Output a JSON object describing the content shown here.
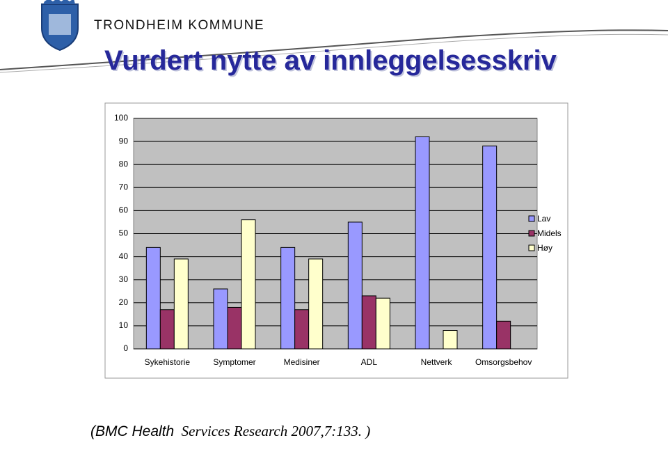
{
  "header": {
    "organization": "TRONDHEIM KOMMUNE"
  },
  "title": "Vurdert nytte av innleggelsesskriv",
  "chart_data": {
    "type": "bar",
    "categories": [
      "Sykehistorie",
      "Symptomer",
      "Medisiner",
      "ADL",
      "Nettverk",
      "Omsorgsbehov"
    ],
    "series": [
      {
        "name": "Lav",
        "color": "#9999ff",
        "values": [
          44,
          26,
          44,
          55,
          92,
          88
        ]
      },
      {
        "name": "Midels",
        "color": "#993366",
        "values": [
          17,
          18,
          17,
          23,
          0,
          12
        ]
      },
      {
        "name": "Høy",
        "color": "#ffffcc",
        "values": [
          39,
          56,
          39,
          22,
          8,
          0
        ]
      }
    ],
    "ylim": [
      0,
      100
    ],
    "yticks": [
      0,
      10,
      20,
      30,
      40,
      50,
      60,
      70,
      80,
      90,
      100
    ],
    "grid": true,
    "legend": "right",
    "plot_background": "#c0c0c0"
  },
  "citation": {
    "part1": "(BMC Health",
    "part2": "Services Research 2007,7:133. )"
  }
}
